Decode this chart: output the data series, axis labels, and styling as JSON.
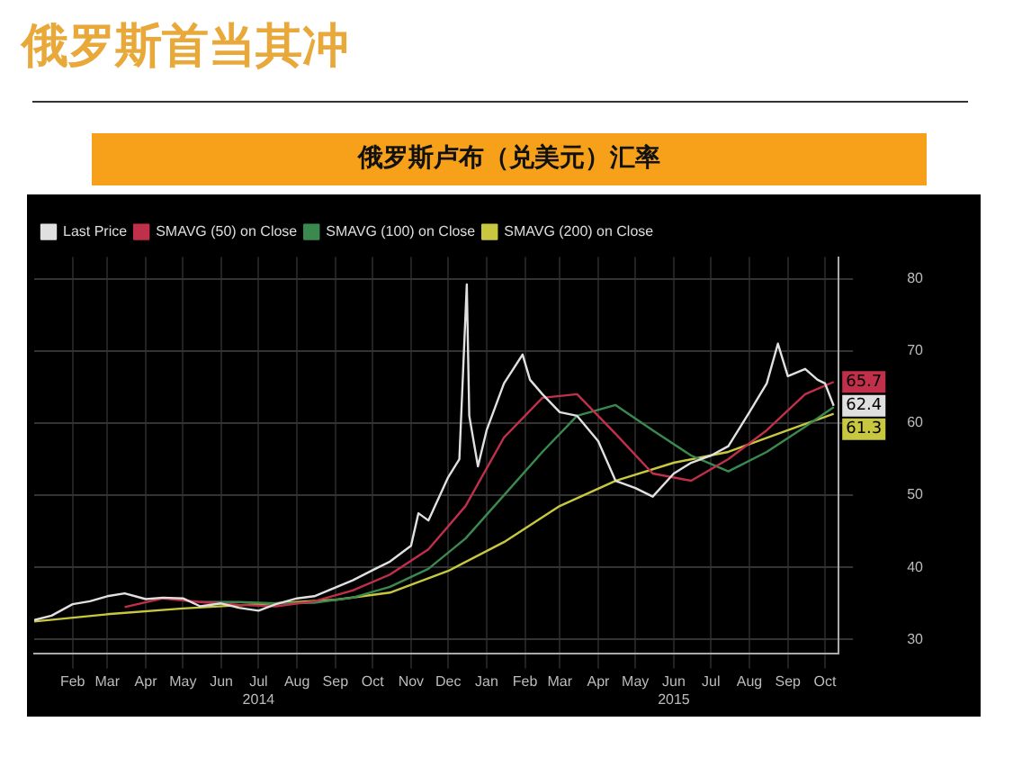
{
  "chart_data": {
    "type": "line",
    "title": "俄罗斯首当其冲",
    "subtitle": "俄罗斯卢布（兑美元）汇率",
    "xlim": [
      "2014-01-01",
      "2015-10-12"
    ],
    "xticks": [
      {
        "value": "2014-02-01",
        "label": "Feb"
      },
      {
        "value": "2014-03-01",
        "label": "Mar"
      },
      {
        "value": "2014-04-01",
        "label": "Apr"
      },
      {
        "value": "2014-05-01",
        "label": "May"
      },
      {
        "value": "2014-06-01",
        "label": "Jun"
      },
      {
        "value": "2014-07-01",
        "label": "Jul\n2014"
      },
      {
        "value": "2014-08-01",
        "label": "Aug"
      },
      {
        "value": "2014-09-01",
        "label": "Sep"
      },
      {
        "value": "2014-10-01",
        "label": "Oct"
      },
      {
        "value": "2014-11-01",
        "label": "Nov"
      },
      {
        "value": "2014-12-01",
        "label": "Dec"
      },
      {
        "value": "2015-01-01",
        "label": "Jan"
      },
      {
        "value": "2015-02-01",
        "label": "Feb"
      },
      {
        "value": "2015-03-01",
        "label": "Mar"
      },
      {
        "value": "2015-04-01",
        "label": "Apr"
      },
      {
        "value": "2015-05-01",
        "label": "May"
      },
      {
        "value": "2015-06-01",
        "label": "Jun\n2015"
      },
      {
        "value": "2015-07-01",
        "label": "Jul"
      },
      {
        "value": "2015-08-01",
        "label": "Aug"
      },
      {
        "value": "2015-09-01",
        "label": "Sep"
      },
      {
        "value": "2015-10-01",
        "label": "Oct"
      }
    ],
    "ylim": [
      28,
      83
    ],
    "yticks": [
      30,
      40,
      50,
      60,
      70,
      80
    ],
    "grid": true,
    "legend": "top left",
    "marker": "none",
    "line_style": "solid",
    "series": [
      {
        "name": "Last Price",
        "color": "#e0e0e0",
        "x": [
          "2014-01-01",
          "2014-01-15",
          "2014-02-01",
          "2014-02-15",
          "2014-03-01",
          "2014-03-15",
          "2014-04-01",
          "2014-04-15",
          "2014-05-01",
          "2014-05-15",
          "2014-06-01",
          "2014-06-15",
          "2014-07-01",
          "2014-07-15",
          "2014-08-01",
          "2014-08-15",
          "2014-09-01",
          "2014-09-15",
          "2014-10-01",
          "2014-10-15",
          "2014-11-01",
          "2014-11-07",
          "2014-11-15",
          "2014-12-01",
          "2014-12-10",
          "2014-12-16",
          "2014-12-18",
          "2014-12-25",
          "2015-01-01",
          "2015-01-15",
          "2015-01-30",
          "2015-02-05",
          "2015-02-15",
          "2015-03-01",
          "2015-03-15",
          "2015-04-01",
          "2015-04-15",
          "2015-05-01",
          "2015-05-15",
          "2015-06-01",
          "2015-06-15",
          "2015-07-01",
          "2015-07-15",
          "2015-08-01",
          "2015-08-15",
          "2015-08-24",
          "2015-09-01",
          "2015-09-15",
          "2015-09-25",
          "2015-10-01",
          "2015-10-08"
        ],
        "values": [
          32.7,
          33.3,
          34.9,
          35.3,
          36.0,
          36.4,
          35.6,
          35.8,
          35.7,
          34.6,
          35.0,
          34.4,
          34.0,
          34.9,
          35.7,
          36.0,
          37.2,
          38.2,
          39.6,
          40.8,
          43.0,
          47.5,
          46.5,
          52.5,
          55.0,
          79.2,
          61.0,
          54.0,
          59.0,
          65.5,
          69.5,
          66.0,
          64.0,
          61.5,
          61.0,
          57.5,
          52.0,
          51.0,
          49.8,
          53.0,
          54.5,
          55.5,
          56.8,
          61.5,
          65.5,
          71.0,
          66.5,
          67.5,
          66.0,
          65.5,
          62.4
        ],
        "value_labels": [
          null,
          null,
          null,
          null,
          null,
          null,
          null,
          null,
          null,
          null,
          null,
          null,
          null,
          null,
          null,
          null,
          null,
          null,
          null,
          null,
          null,
          null,
          null,
          null,
          null,
          null,
          null,
          null,
          null,
          null,
          null,
          null,
          null,
          null,
          null,
          null,
          null,
          null,
          null,
          null,
          null,
          null,
          null,
          null,
          null,
          null,
          null,
          null,
          null,
          null,
          "62.4"
        ]
      },
      {
        "name": "SMAVG (50) on Close",
        "color": "#c0304a",
        "x": [
          "2014-03-15",
          "2014-04-15",
          "2014-05-15",
          "2014-06-15",
          "2014-07-15",
          "2014-08-15",
          "2014-09-15",
          "2014-10-15",
          "2014-11-15",
          "2014-12-15",
          "2015-01-15",
          "2015-02-15",
          "2015-03-15",
          "2015-04-15",
          "2015-05-15",
          "2015-06-15",
          "2015-07-15",
          "2015-08-15",
          "2015-09-15",
          "2015-10-08"
        ],
        "values": [
          34.5,
          35.7,
          35.2,
          34.8,
          34.6,
          35.3,
          36.8,
          39.0,
          42.5,
          48.5,
          58.0,
          63.5,
          64.0,
          58.5,
          53.0,
          52.0,
          55.0,
          59.0,
          64.0,
          65.7
        ],
        "value_labels": [
          null,
          null,
          null,
          null,
          null,
          null,
          null,
          null,
          null,
          null,
          null,
          null,
          null,
          null,
          null,
          null,
          null,
          null,
          null,
          "65.7"
        ]
      },
      {
        "name": "SMAVG (100) on Close",
        "color": "#3a8a50",
        "x": [
          "2014-05-15",
          "2014-06-15",
          "2014-07-15",
          "2014-08-15",
          "2014-09-15",
          "2014-10-15",
          "2014-11-15",
          "2014-12-15",
          "2015-01-15",
          "2015-02-15",
          "2015-03-15",
          "2015-04-15",
          "2015-05-15",
          "2015-06-15",
          "2015-07-15",
          "2015-08-15",
          "2015-09-15",
          "2015-10-08"
        ],
        "values": [
          35.2,
          35.2,
          35.0,
          35.1,
          35.8,
          37.3,
          39.8,
          44.0,
          50.0,
          56.0,
          61.0,
          62.5,
          59.0,
          55.5,
          53.3,
          56.0,
          59.5,
          62.2
        ]
      },
      {
        "name": "SMAVG (200) on Close",
        "color": "#c8c840",
        "x": [
          "2014-01-01",
          "2014-03-01",
          "2014-05-01",
          "2014-07-01",
          "2014-09-01",
          "2014-10-15",
          "2014-12-01",
          "2015-01-15",
          "2015-03-01",
          "2015-04-15",
          "2015-06-01",
          "2015-07-15",
          "2015-09-01",
          "2015-10-08"
        ],
        "values": [
          32.5,
          33.5,
          34.3,
          34.9,
          35.5,
          36.5,
          39.5,
          43.5,
          48.5,
          52.0,
          54.5,
          56.0,
          59.0,
          61.3
        ],
        "value_labels": [
          null,
          null,
          null,
          null,
          null,
          null,
          null,
          null,
          null,
          null,
          null,
          null,
          null,
          "61.3"
        ]
      }
    ]
  }
}
